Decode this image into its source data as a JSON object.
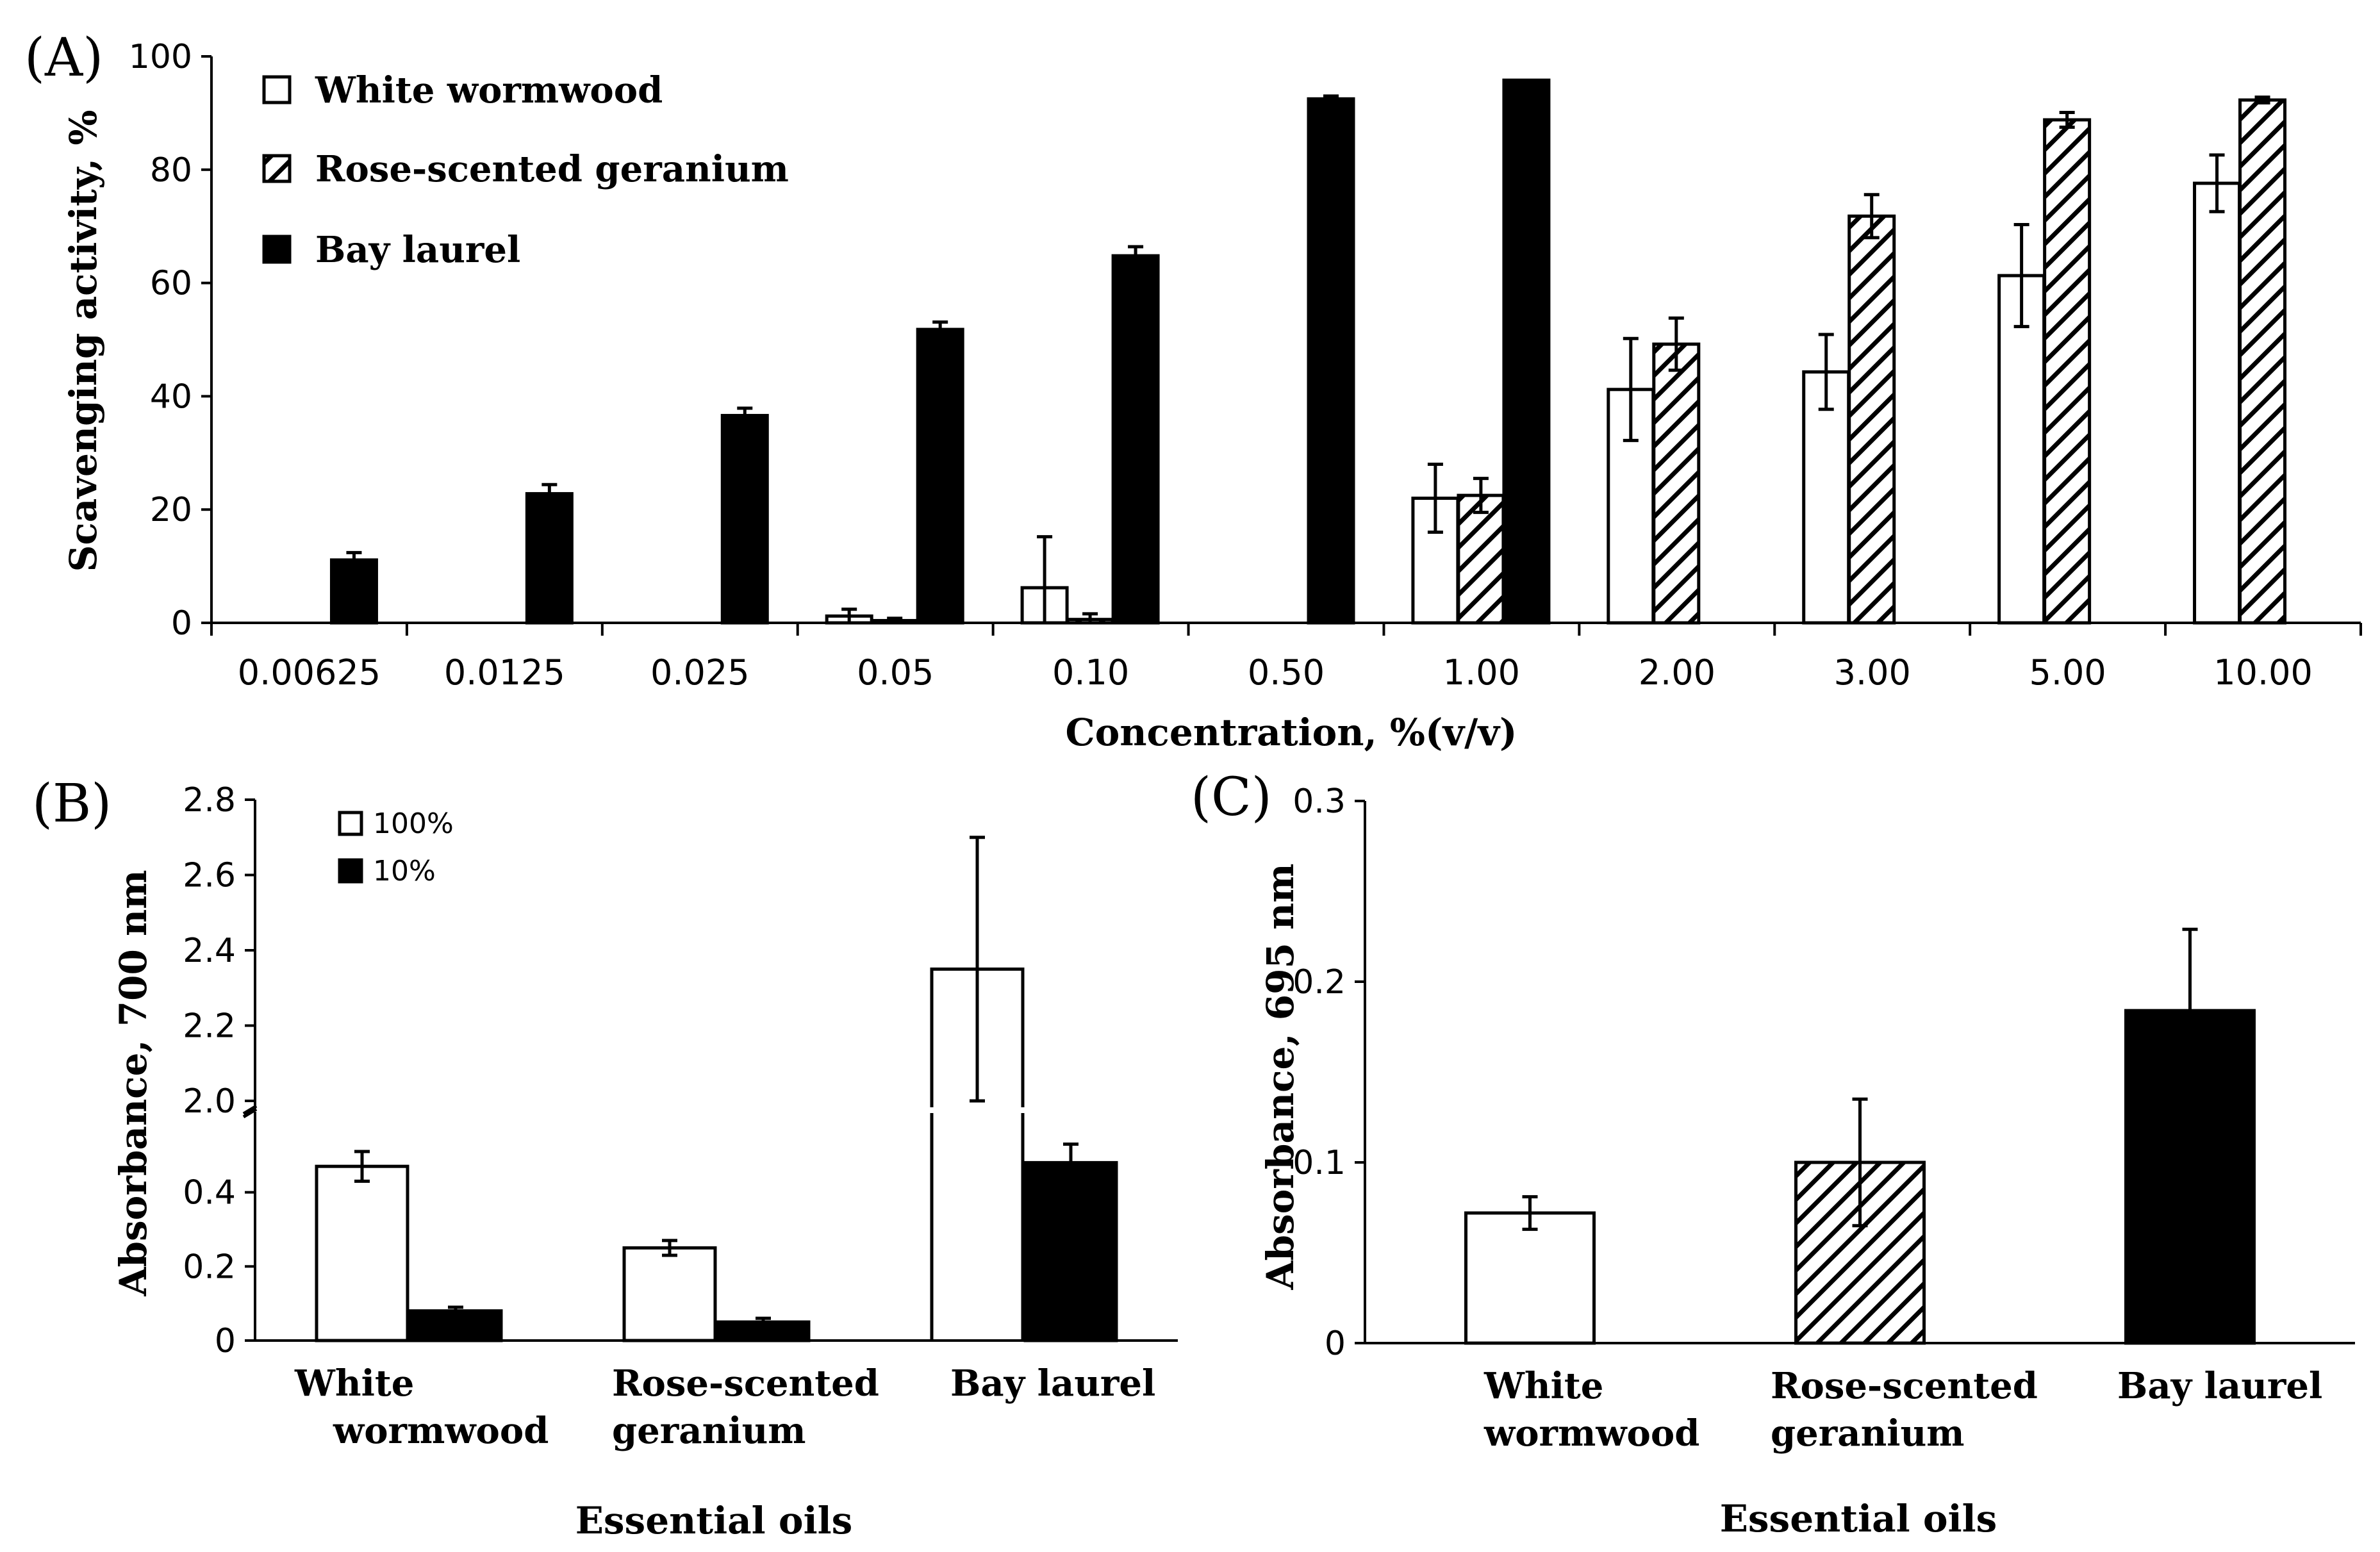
{
  "colors": {
    "black": "#000000",
    "white": "#ffffff"
  },
  "chart_data": [
    {
      "panel": "(A)",
      "type": "bar",
      "ylabel": "Scavenging activity, %",
      "xlabel": "Concentration, %(v/v)",
      "ylim": [
        0,
        100
      ],
      "yticks": [
        "0",
        "20",
        "40",
        "60",
        "80",
        "100"
      ],
      "categories": [
        "0.00625",
        "0.0125",
        "0.025",
        "0.05",
        "0.10",
        "0.50",
        "1.00",
        "2.00",
        "3.00",
        "5.00",
        "10.00"
      ],
      "legend_position": "top-left",
      "series": [
        {
          "name": "White wormwood",
          "fill": "white",
          "values": [
            null,
            null,
            null,
            1.2,
            6.2,
            null,
            22,
            41.2,
            44.3,
            61.3,
            77.6
          ],
          "errors": [
            null,
            null,
            null,
            1.2,
            9.0,
            null,
            6.0,
            9.0,
            6.6,
            9.0,
            5.0
          ]
        },
        {
          "name": "Rose-scented geranium",
          "fill": "hatch",
          "values": [
            null,
            null,
            null,
            0.4,
            0.6,
            null,
            22.5,
            49.2,
            71.8,
            88.8,
            92.3
          ],
          "errors": [
            null,
            null,
            null,
            0.4,
            1.0,
            null,
            3.0,
            4.6,
            3.8,
            1.3,
            0.5
          ]
        },
        {
          "name": "Bay laurel",
          "fill": "black",
          "values": [
            11.1,
            22.8,
            36.6,
            51.8,
            64.8,
            92.5,
            95.8,
            null,
            null,
            null,
            null
          ],
          "errors": [
            1.3,
            1.6,
            1.3,
            1.3,
            1.6,
            0.5,
            0.0,
            null,
            null,
            null,
            null
          ]
        }
      ]
    },
    {
      "panel": "(B)",
      "type": "bar",
      "ylabel": "Absorbance, 700 nm",
      "xlabel": "Essential oils",
      "axis_break": true,
      "yticks_lower": [
        "0",
        "0.2",
        "0.4"
      ],
      "yticks_upper": [
        "2.0",
        "2.2",
        "2.4",
        "2.6",
        "2.8"
      ],
      "ylim_lower": [
        0,
        0.6
      ],
      "ylim_upper": [
        2.0,
        2.8
      ],
      "categories": [
        "White wormwood",
        "Rose-scented geranium",
        "Bay laurel"
      ],
      "category_lines": [
        [
          "White",
          "wormwood"
        ],
        [
          "Rose-scented",
          "geranium"
        ],
        [
          "Bay laurel"
        ]
      ],
      "legend_position": "top-left",
      "series": [
        {
          "name": "100%",
          "fill": "white",
          "values": [
            0.47,
            0.25,
            2.35
          ],
          "errors": [
            0.04,
            0.02,
            0.35
          ]
        },
        {
          "name": "10%",
          "fill": "black",
          "values": [
            0.08,
            0.05,
            0.48
          ],
          "errors": [
            0.01,
            0.01,
            0.05
          ]
        }
      ]
    },
    {
      "panel": "(C)",
      "type": "bar",
      "ylabel": "Absorbance, 695 nm",
      "xlabel": "Essential oils",
      "ylim": [
        0,
        0.3
      ],
      "yticks": [
        "0",
        "0.1",
        "0.2",
        "0.3"
      ],
      "categories": [
        "White wormwood",
        "Rose-scented geranium",
        "Bay laurel"
      ],
      "category_lines": [
        [
          "White",
          "wormwood"
        ],
        [
          "Rose-scented",
          "geranium"
        ],
        [
          "Bay laurel"
        ]
      ],
      "series": [
        {
          "name": "Essential oils",
          "fills": [
            "white",
            "hatch",
            "black"
          ],
          "values": [
            0.072,
            0.1,
            0.184
          ],
          "errors": [
            0.009,
            0.035,
            0.045
          ]
        }
      ]
    }
  ]
}
